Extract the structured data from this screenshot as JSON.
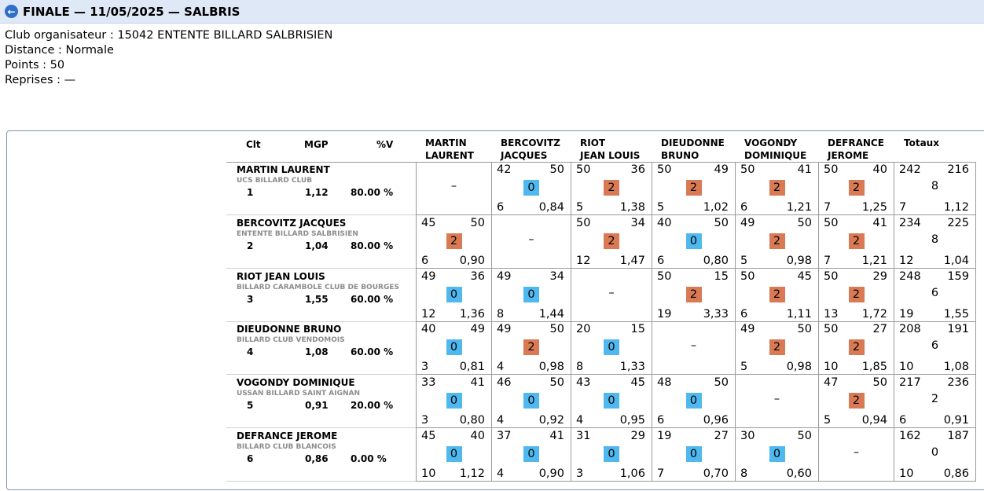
{
  "header": {
    "title": "FINALE — 11/05/2025 — SALBRIS",
    "back_icon": "arrow-left-icon"
  },
  "info": {
    "club": "Club organisateur : 15042 ENTENTE BILLARD SALBRISIEN",
    "distance": "Distance : Normale",
    "points": "Points : 50",
    "reprises": "Reprises : —"
  },
  "table": {
    "headers": {
      "clt": "Clt",
      "mgp": "MGP",
      "pct": "%V",
      "totals": "Totaux"
    },
    "columns": [
      {
        "line1": "MARTIN",
        "line2": "LAURENT"
      },
      {
        "line1": "BERCOVITZ",
        "line2": "JACQUES"
      },
      {
        "line1": "RIOT",
        "line2": "JEAN LOUIS"
      },
      {
        "line1": "DIEUDONNE",
        "line2": "BRUNO"
      },
      {
        "line1": "VOGONDY",
        "line2": "DOMINIQUE"
      },
      {
        "line1": "DEFRANCE",
        "line2": "JEROME"
      }
    ],
    "players": [
      {
        "name": "MARTIN LAURENT",
        "club": "UCS BILLARD CLUB",
        "rank": "1",
        "mgp": "1,12",
        "pct": "80.00 %",
        "cells": [
          null,
          {
            "a": "42",
            "b": "50",
            "pts": "0",
            "rep": "6",
            "avg": "0,84"
          },
          {
            "a": "50",
            "b": "36",
            "pts": "2",
            "rep": "5",
            "avg": "1,38"
          },
          {
            "a": "50",
            "b": "49",
            "pts": "2",
            "rep": "5",
            "avg": "1,02"
          },
          {
            "a": "50",
            "b": "41",
            "pts": "2",
            "rep": "6",
            "avg": "1,21"
          },
          {
            "a": "50",
            "b": "40",
            "pts": "2",
            "rep": "7",
            "avg": "1,25"
          }
        ],
        "totals": {
          "a": "242",
          "b": "216",
          "pts": "8",
          "rep": "7",
          "avg": "1,12"
        }
      },
      {
        "name": "BERCOVITZ JACQUES",
        "club": "ENTENTE BILLARD SALBRISIEN",
        "rank": "2",
        "mgp": "1,04",
        "pct": "80.00 %",
        "cells": [
          {
            "a": "45",
            "b": "50",
            "pts": "2",
            "rep": "6",
            "avg": "0,90"
          },
          null,
          {
            "a": "50",
            "b": "34",
            "pts": "2",
            "rep": "12",
            "avg": "1,47"
          },
          {
            "a": "40",
            "b": "50",
            "pts": "0",
            "rep": "6",
            "avg": "0,80"
          },
          {
            "a": "49",
            "b": "50",
            "pts": "2",
            "rep": "5",
            "avg": "0,98"
          },
          {
            "a": "50",
            "b": "41",
            "pts": "2",
            "rep": "7",
            "avg": "1,21"
          }
        ],
        "totals": {
          "a": "234",
          "b": "225",
          "pts": "8",
          "rep": "12",
          "avg": "1,04"
        }
      },
      {
        "name": "RIOT JEAN LOUIS",
        "club": "BILLARD CARAMBOLE CLUB DE BOURGES",
        "rank": "3",
        "mgp": "1,55",
        "pct": "60.00 %",
        "cells": [
          {
            "a": "49",
            "b": "36",
            "pts": "0",
            "rep": "12",
            "avg": "1,36"
          },
          {
            "a": "49",
            "b": "34",
            "pts": "0",
            "rep": "8",
            "avg": "1,44"
          },
          null,
          {
            "a": "50",
            "b": "15",
            "pts": "2",
            "rep": "19",
            "avg": "3,33"
          },
          {
            "a": "50",
            "b": "45",
            "pts": "2",
            "rep": "6",
            "avg": "1,11"
          },
          {
            "a": "50",
            "b": "29",
            "pts": "2",
            "rep": "13",
            "avg": "1,72"
          }
        ],
        "totals": {
          "a": "248",
          "b": "159",
          "pts": "6",
          "rep": "19",
          "avg": "1,55"
        }
      },
      {
        "name": "DIEUDONNE BRUNO",
        "club": "BILLARD CLUB VENDOMOIS",
        "rank": "4",
        "mgp": "1,08",
        "pct": "60.00 %",
        "cells": [
          {
            "a": "40",
            "b": "49",
            "pts": "0",
            "rep": "3",
            "avg": "0,81"
          },
          {
            "a": "49",
            "b": "50",
            "pts": "2",
            "rep": "4",
            "avg": "0,98"
          },
          {
            "a": "20",
            "b": "15",
            "pts": "0",
            "rep": "8",
            "avg": "1,33"
          },
          null,
          {
            "a": "49",
            "b": "50",
            "pts": "2",
            "rep": "5",
            "avg": "0,98"
          },
          {
            "a": "50",
            "b": "27",
            "pts": "2",
            "rep": "10",
            "avg": "1,85"
          }
        ],
        "totals": {
          "a": "208",
          "b": "191",
          "pts": "6",
          "rep": "10",
          "avg": "1,08"
        }
      },
      {
        "name": "VOGONDY DOMINIQUE",
        "club": "USSAN BILLARD SAINT AIGNAN",
        "rank": "5",
        "mgp": "0,91",
        "pct": "20.00 %",
        "cells": [
          {
            "a": "33",
            "b": "41",
            "pts": "0",
            "rep": "3",
            "avg": "0,80"
          },
          {
            "a": "46",
            "b": "50",
            "pts": "0",
            "rep": "4",
            "avg": "0,92"
          },
          {
            "a": "43",
            "b": "45",
            "pts": "0",
            "rep": "4",
            "avg": "0,95"
          },
          {
            "a": "48",
            "b": "50",
            "pts": "0",
            "rep": "6",
            "avg": "0,96"
          },
          null,
          {
            "a": "47",
            "b": "50",
            "pts": "2",
            "rep": "5",
            "avg": "0,94"
          }
        ],
        "totals": {
          "a": "217",
          "b": "236",
          "pts": "2",
          "rep": "6",
          "avg": "0,91"
        }
      },
      {
        "name": "DEFRANCE JEROME",
        "club": "BILLARD CLUB BLANCOIS",
        "rank": "6",
        "mgp": "0,86",
        "pct": "0.00 %",
        "cells": [
          {
            "a": "45",
            "b": "40",
            "pts": "0",
            "rep": "10",
            "avg": "1,12"
          },
          {
            "a": "37",
            "b": "41",
            "pts": "0",
            "rep": "4",
            "avg": "0,90"
          },
          {
            "a": "31",
            "b": "29",
            "pts": "0",
            "rep": "3",
            "avg": "1,06"
          },
          {
            "a": "19",
            "b": "27",
            "pts": "0",
            "rep": "7",
            "avg": "0,70"
          },
          {
            "a": "30",
            "b": "50",
            "pts": "0",
            "rep": "8",
            "avg": "0,60"
          },
          null
        ],
        "totals": {
          "a": "162",
          "b": "187",
          "pts": "0",
          "rep": "10",
          "avg": "0,86"
        }
      }
    ],
    "empty_marker": "–"
  },
  "colors": {
    "win": "#d97a55",
    "loss": "#4eb8ef",
    "header_bg": "#dfe8f6"
  }
}
